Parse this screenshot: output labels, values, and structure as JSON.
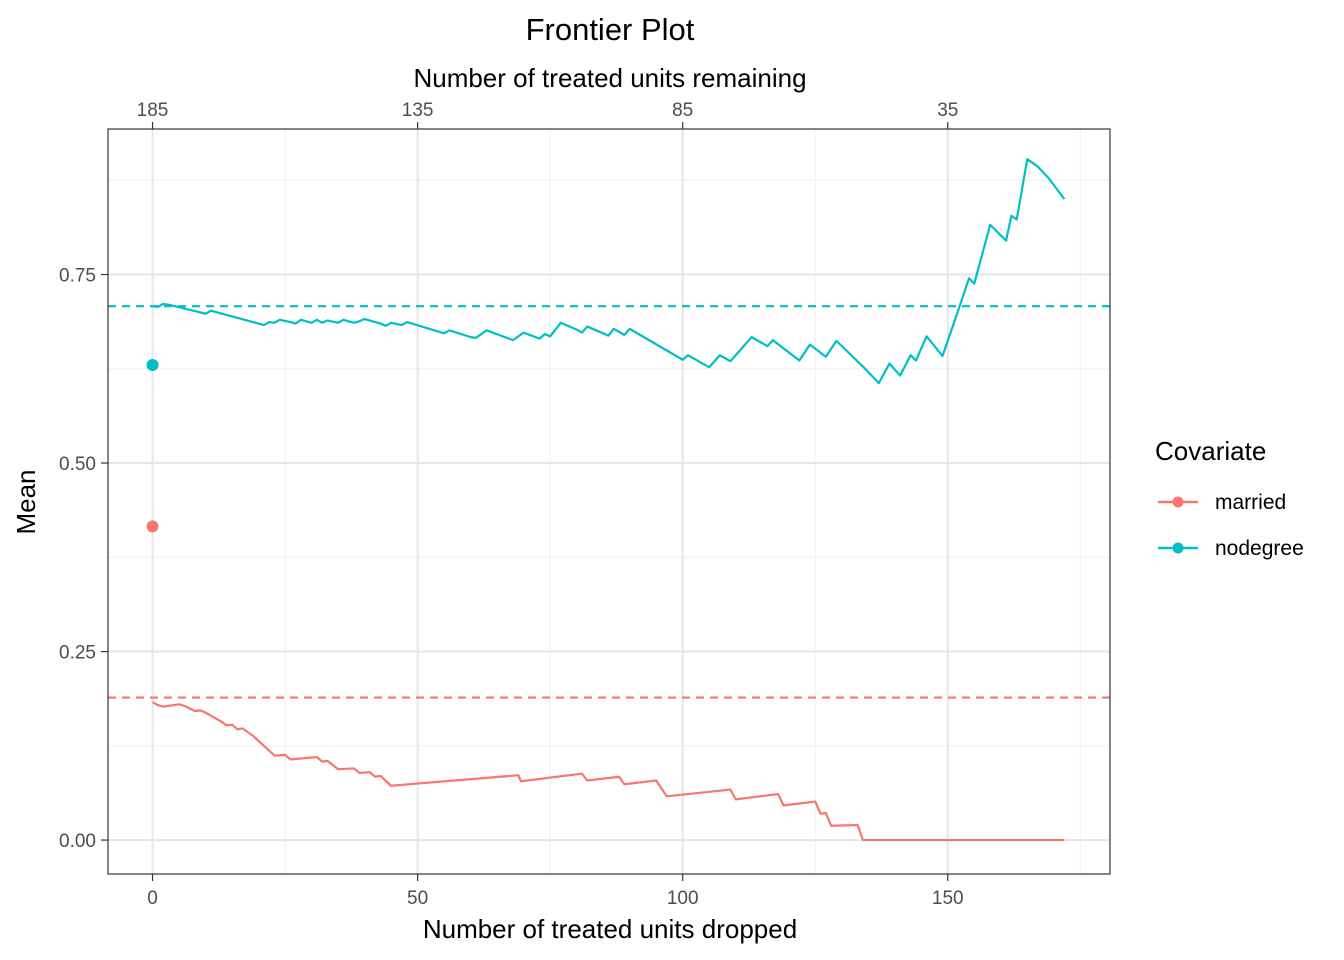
{
  "chart_data": {
    "type": "line",
    "title": "Frontier Plot",
    "xlabel": "Number of treated units dropped",
    "x2label": "Number of treated units remaining",
    "ylabel": "Mean",
    "xlim": [
      -8.4,
      180.6
    ],
    "ylim": [
      -0.045,
      0.943
    ],
    "x_ticks": [
      0,
      50,
      100,
      150
    ],
    "x_tick_labels": [
      "0",
      "50",
      "100",
      "150"
    ],
    "x2_ticks": [
      0,
      50,
      100,
      150
    ],
    "x2_tick_labels": [
      "185",
      "135",
      "85",
      "35"
    ],
    "y_ticks": [
      0,
      0.25,
      0.5,
      0.75
    ],
    "y_tick_labels": [
      "0.00",
      "0.25",
      "0.50",
      "0.75"
    ],
    "grid": true,
    "legend": {
      "title": "Covariate",
      "position": "right"
    },
    "series": [
      {
        "name": "married",
        "color": "#F8766D",
        "start_point": {
          "x": 0,
          "y": 0.416
        },
        "reference_line": 0.189,
        "points": [
          [
            0,
            0.183
          ],
          [
            1,
            0.179
          ],
          [
            2,
            0.177
          ],
          [
            5,
            0.18
          ],
          [
            6,
            0.178
          ],
          [
            8,
            0.171
          ],
          [
            9,
            0.172
          ],
          [
            10,
            0.169
          ],
          [
            13,
            0.157
          ],
          [
            14,
            0.152
          ],
          [
            15,
            0.153
          ],
          [
            16,
            0.147
          ],
          [
            17,
            0.148
          ],
          [
            19,
            0.138
          ],
          [
            21,
            0.125
          ],
          [
            23,
            0.112
          ],
          [
            25,
            0.113
          ],
          [
            26,
            0.107
          ],
          [
            31,
            0.11
          ],
          [
            32,
            0.104
          ],
          [
            33,
            0.105
          ],
          [
            35,
            0.094
          ],
          [
            38,
            0.095
          ],
          [
            39,
            0.089
          ],
          [
            41,
            0.09
          ],
          [
            42,
            0.084
          ],
          [
            43,
            0.085
          ],
          [
            45,
            0.072
          ],
          [
            69,
            0.086
          ],
          [
            69.5,
            0.078
          ],
          [
            81,
            0.088
          ],
          [
            82,
            0.079
          ],
          [
            88,
            0.084
          ],
          [
            89,
            0.074
          ],
          [
            95,
            0.079
          ],
          [
            97,
            0.058
          ],
          [
            109,
            0.067
          ],
          [
            110,
            0.054
          ],
          [
            118,
            0.061
          ],
          [
            119,
            0.046
          ],
          [
            125,
            0.051
          ],
          [
            126,
            0.035
          ],
          [
            127,
            0.036
          ],
          [
            128,
            0.019
          ],
          [
            133,
            0.02
          ],
          [
            134,
            0.0
          ],
          [
            172,
            0.0
          ]
        ]
      },
      {
        "name": "nodegree",
        "color": "#00BFC4",
        "start_point": {
          "x": 0,
          "y": 0.63
        },
        "reference_line": 0.708,
        "points": [
          [
            0,
            0.708
          ],
          [
            1,
            0.707
          ],
          [
            2,
            0.711
          ],
          [
            3,
            0.71
          ],
          [
            10,
            0.698
          ],
          [
            11,
            0.702
          ],
          [
            20,
            0.685
          ],
          [
            21,
            0.683
          ],
          [
            22,
            0.687
          ],
          [
            23,
            0.686
          ],
          [
            24,
            0.69
          ],
          [
            26,
            0.687
          ],
          [
            27,
            0.685
          ],
          [
            28,
            0.69
          ],
          [
            30,
            0.686
          ],
          [
            31,
            0.69
          ],
          [
            32,
            0.686
          ],
          [
            33,
            0.689
          ],
          [
            35,
            0.686
          ],
          [
            36,
            0.69
          ],
          [
            38,
            0.686
          ],
          [
            39,
            0.688
          ],
          [
            40,
            0.691
          ],
          [
            43,
            0.685
          ],
          [
            44,
            0.682
          ],
          [
            45,
            0.686
          ],
          [
            47,
            0.683
          ],
          [
            48,
            0.687
          ],
          [
            55,
            0.672
          ],
          [
            56,
            0.676
          ],
          [
            60,
            0.667
          ],
          [
            61,
            0.666
          ],
          [
            63,
            0.676
          ],
          [
            68,
            0.663
          ],
          [
            70,
            0.673
          ],
          [
            73,
            0.665
          ],
          [
            74,
            0.671
          ],
          [
            75,
            0.668
          ],
          [
            77,
            0.686
          ],
          [
            80,
            0.677
          ],
          [
            81,
            0.673
          ],
          [
            82,
            0.681
          ],
          [
            86,
            0.669
          ],
          [
            87,
            0.678
          ],
          [
            89,
            0.67
          ],
          [
            90,
            0.678
          ],
          [
            100,
            0.637
          ],
          [
            101,
            0.643
          ],
          [
            105,
            0.627
          ],
          [
            107,
            0.643
          ],
          [
            109,
            0.635
          ],
          [
            113,
            0.667
          ],
          [
            116,
            0.655
          ],
          [
            117,
            0.663
          ],
          [
            122,
            0.636
          ],
          [
            124,
            0.657
          ],
          [
            127,
            0.641
          ],
          [
            129,
            0.662
          ],
          [
            134,
            0.628
          ],
          [
            137,
            0.606
          ],
          [
            139,
            0.632
          ],
          [
            141,
            0.616
          ],
          [
            143,
            0.643
          ],
          [
            144,
            0.636
          ],
          [
            146,
            0.668
          ],
          [
            149,
            0.642
          ],
          [
            152,
            0.703
          ],
          [
            154,
            0.745
          ],
          [
            155,
            0.738
          ],
          [
            158,
            0.816
          ],
          [
            161,
            0.795
          ],
          [
            162,
            0.828
          ],
          [
            163,
            0.823
          ],
          [
            165,
            0.903
          ],
          [
            167,
            0.893
          ],
          [
            169,
            0.878
          ],
          [
            172,
            0.85
          ]
        ]
      }
    ]
  }
}
